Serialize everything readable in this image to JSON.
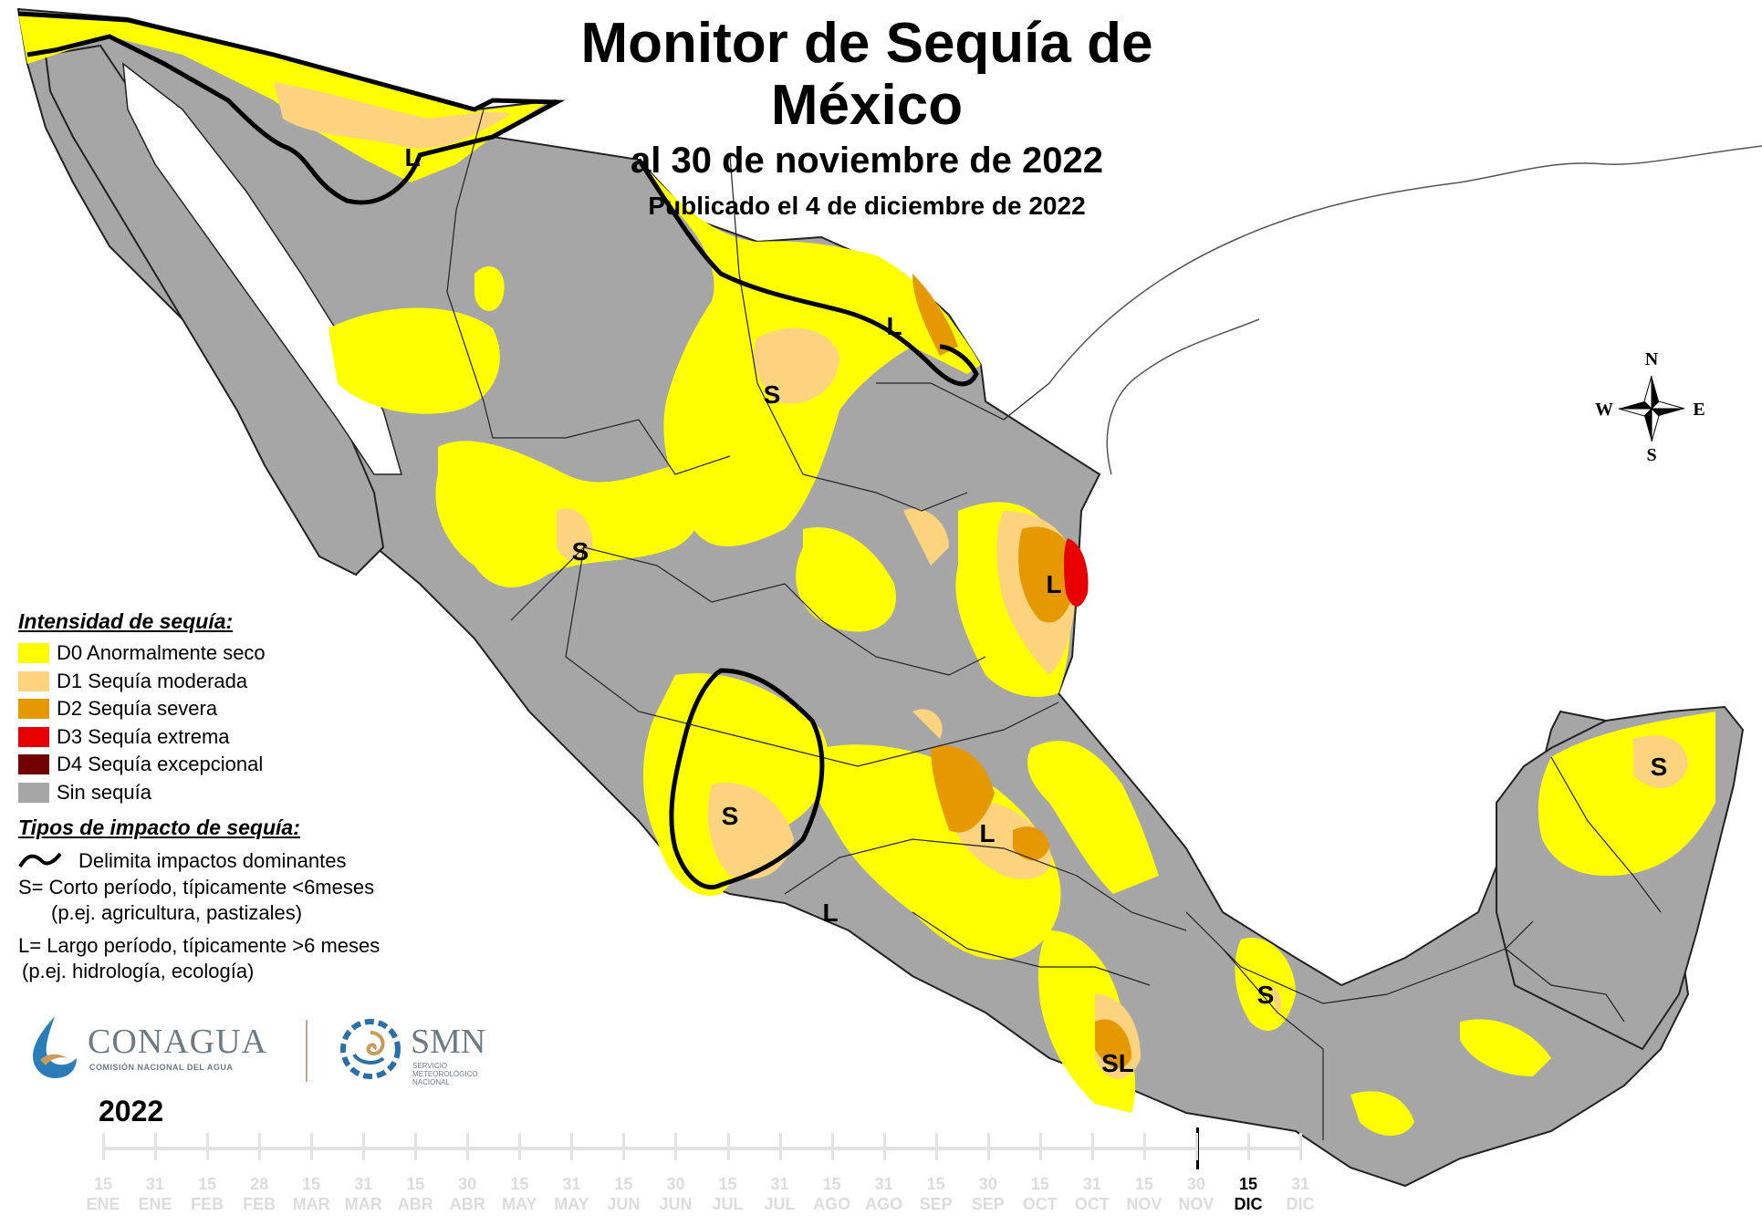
{
  "header": {
    "title": "Monitor de Sequía de México",
    "subtitle": "al 30 de noviembre de 2022",
    "published": "Publicado el 4 de diciembre de 2022"
  },
  "compass": {
    "n": "N",
    "s": "S",
    "e": "E",
    "w": "W"
  },
  "map_labels": [
    {
      "id": "sonora-north",
      "text": "L"
    },
    {
      "id": "coahuila-north",
      "text": "L"
    },
    {
      "id": "coahuila-center",
      "text": "S"
    },
    {
      "id": "durango",
      "text": "S"
    },
    {
      "id": "veracruz-north",
      "text": "L"
    },
    {
      "id": "jalisco",
      "text": "S"
    },
    {
      "id": "guerrero-michoacan",
      "text": "L"
    },
    {
      "id": "central",
      "text": "L"
    },
    {
      "id": "oaxaca",
      "text": "SL"
    },
    {
      "id": "tabasco",
      "text": "S"
    },
    {
      "id": "yucatan",
      "text": "S"
    }
  ],
  "legend": {
    "intensity_title": "Intensidad de sequía:",
    "categories": [
      {
        "code": "D0",
        "label": "D0 Anormalmente seco",
        "color": "#ffff00"
      },
      {
        "code": "D1",
        "label": "D1 Sequía moderada",
        "color": "#fcd37f"
      },
      {
        "code": "D2",
        "label": "D2 Sequía severa",
        "color": "#e69800"
      },
      {
        "code": "D3",
        "label": "D3 Sequía extrema",
        "color": "#e60000"
      },
      {
        "code": "D4",
        "label": "D4 Sequía excepcional",
        "color": "#730000"
      },
      {
        "code": "none",
        "label": "Sin sequía",
        "color": "#a6a6a6"
      }
    ],
    "impact_title": "Tipos de impacto de sequía:",
    "impact_line_label": "Delimita impactos dominantes",
    "impact_s": "S= Corto período, típicamente <6meses",
    "impact_s_example": "(p.ej. agricultura, pastizales)",
    "impact_l": "L= Largo período, típicamente >6 meses",
    "impact_l_example": "(p.ej. hidrología, ecología)"
  },
  "logos": {
    "conagua": "CONAGUA",
    "conagua_sub": "COMISIÓN NACIONAL DEL AGUA",
    "smn": "SMN",
    "smn_sub": "SERVICIO METEOROLÓGICO NACIONAL"
  },
  "timeline": {
    "year": "2022",
    "current_index": 22,
    "ticks": [
      {
        "day": "15",
        "month": "ENE"
      },
      {
        "day": "31",
        "month": "ENE"
      },
      {
        "day": "15",
        "month": "FEB"
      },
      {
        "day": "28",
        "month": "FEB"
      },
      {
        "day": "15",
        "month": "MAR"
      },
      {
        "day": "31",
        "month": "MAR"
      },
      {
        "day": "15",
        "month": "ABR"
      },
      {
        "day": "30",
        "month": "ABR"
      },
      {
        "day": "15",
        "month": "MAY"
      },
      {
        "day": "31",
        "month": "MAY"
      },
      {
        "day": "15",
        "month": "JUN"
      },
      {
        "day": "30",
        "month": "JUN"
      },
      {
        "day": "15",
        "month": "JUL"
      },
      {
        "day": "31",
        "month": "JUL"
      },
      {
        "day": "15",
        "month": "AGO"
      },
      {
        "day": "31",
        "month": "AGO"
      },
      {
        "day": "15",
        "month": "SEP"
      },
      {
        "day": "30",
        "month": "SEP"
      },
      {
        "day": "15",
        "month": "OCT"
      },
      {
        "day": "31",
        "month": "OCT"
      },
      {
        "day": "15",
        "month": "NOV"
      },
      {
        "day": "30",
        "month": "NOV"
      },
      {
        "day": "15",
        "month": "DIC"
      },
      {
        "day": "31",
        "month": "DIC"
      }
    ]
  }
}
